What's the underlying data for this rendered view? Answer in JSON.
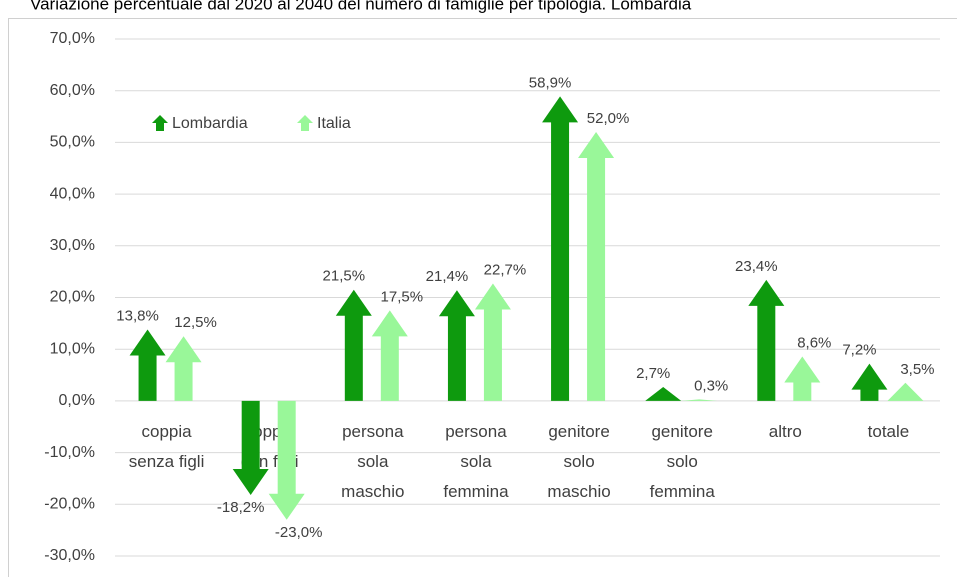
{
  "chart_data": {
    "type": "arrow_bar",
    "title": "Variazione percentuale dal 2020 al 2040 del numero di famiglie per tipologia. Lombardia",
    "categories": [
      "coppia\nsenza figli",
      "coppia\ncon figli",
      "persona\nsola\nmaschio",
      "persona\nsola\nfemmina",
      "genitore\nsolo\nmaschio",
      "genitore\nsolo\nfemmina",
      "altro",
      "totale"
    ],
    "series": [
      {
        "name": "Lombardia",
        "color": "#0e9a0e",
        "values": [
          13.8,
          -18.2,
          21.5,
          21.4,
          58.9,
          2.7,
          23.4,
          7.2
        ],
        "value_labels": [
          "13,8%",
          "-18,2%",
          "21,5%",
          "21,4%",
          "58,9%",
          "2,7%",
          "23,4%",
          "7,2%"
        ]
      },
      {
        "name": "Italia",
        "color": "#99f799",
        "values": [
          12.5,
          -23.0,
          17.5,
          22.7,
          52.0,
          0.3,
          8.6,
          3.5
        ],
        "value_labels": [
          "12,5%",
          "-23,0%",
          "17,5%",
          "22,7%",
          "52,0%",
          "0,3%",
          "8,6%",
          "3,5%"
        ]
      }
    ],
    "ylim": [
      -30,
      70
    ],
    "yticks": [
      {
        "value": -30,
        "label": "-30,0%"
      },
      {
        "value": -20,
        "label": "-20,0%"
      },
      {
        "value": -10,
        "label": "-10,0%"
      },
      {
        "value": 0,
        "label": "0,0%"
      },
      {
        "value": 10,
        "label": "10,0%"
      },
      {
        "value": 20,
        "label": "20,0%"
      },
      {
        "value": 30,
        "label": "30,0%"
      },
      {
        "value": 40,
        "label": "40,0%"
      },
      {
        "value": 50,
        "label": "50,0%"
      },
      {
        "value": 60,
        "label": "60,0%"
      },
      {
        "value": 70,
        "label": "70,0%"
      }
    ],
    "grid": true,
    "legend": "top-left"
  }
}
